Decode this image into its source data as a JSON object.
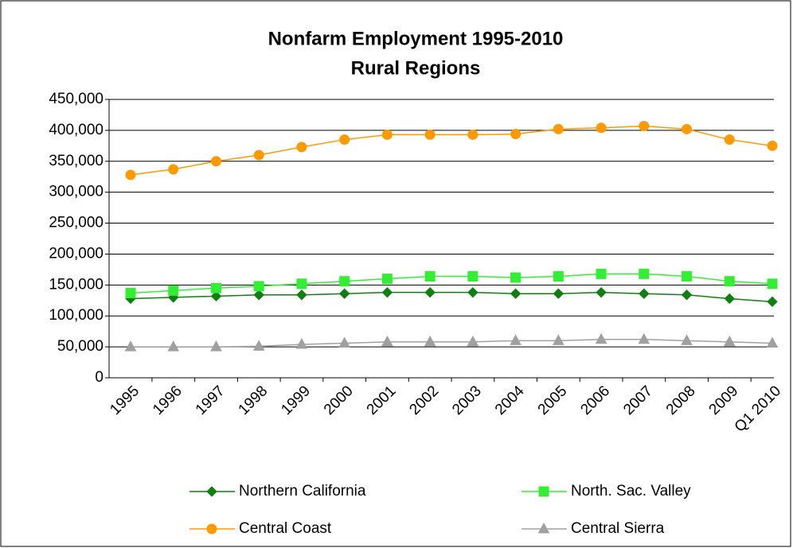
{
  "chart_data": {
    "type": "line",
    "title": "Nonfarm Employment 1995-2010",
    "subtitle": "Rural Regions",
    "categories": [
      "1995",
      "1996",
      "1997",
      "1998",
      "1999",
      "2000",
      "2001",
      "2002",
      "2003",
      "2004",
      "2005",
      "2006",
      "2007",
      "2008",
      "2009",
      "Q1 2010"
    ],
    "series": [
      {
        "name": "Northern California",
        "color": "#0f7f0f",
        "marker": "diamond",
        "values": [
          128000,
          130000,
          132000,
          134000,
          134000,
          136000,
          138000,
          138000,
          138000,
          136000,
          136000,
          138000,
          136000,
          134000,
          128000,
          123000
        ]
      },
      {
        "name": "North. Sac. Valley",
        "color": "#33ee33",
        "marker": "square",
        "values": [
          137000,
          141000,
          145000,
          148000,
          152000,
          156000,
          160000,
          164000,
          164000,
          162000,
          164000,
          168000,
          168000,
          164000,
          156000,
          152000
        ]
      },
      {
        "name": "Central Coast",
        "color": "#ff9900",
        "marker": "circle",
        "values": [
          328000,
          337000,
          350000,
          360000,
          373000,
          385000,
          393000,
          393000,
          393000,
          394000,
          402000,
          404000,
          407000,
          402000,
          385000,
          375000
        ]
      },
      {
        "name": "Central Sierra",
        "color": "#a0a0a0",
        "marker": "triangle",
        "values": [
          50000,
          50000,
          50000,
          51000,
          54000,
          56000,
          58000,
          58000,
          58000,
          60000,
          60000,
          62000,
          62000,
          60000,
          58000,
          56000
        ]
      }
    ],
    "ylim": [
      0,
      450000
    ],
    "yticks": [
      0,
      {
        "value": 50000,
        "label": "50,000"
      },
      {
        "value": 100000,
        "label": "100,000"
      },
      {
        "value": 150000,
        "label": "150,000"
      },
      {
        "value": 200000,
        "label": "200,000"
      },
      {
        "value": 250000,
        "label": "250,000"
      },
      {
        "value": 300000,
        "label": "300,000"
      },
      {
        "value": 350000,
        "label": "350,000"
      },
      {
        "value": 400000,
        "label": "400,000"
      },
      {
        "value": 450000,
        "label": "450,000"
      }
    ],
    "grid": true,
    "legend": "bottom"
  }
}
